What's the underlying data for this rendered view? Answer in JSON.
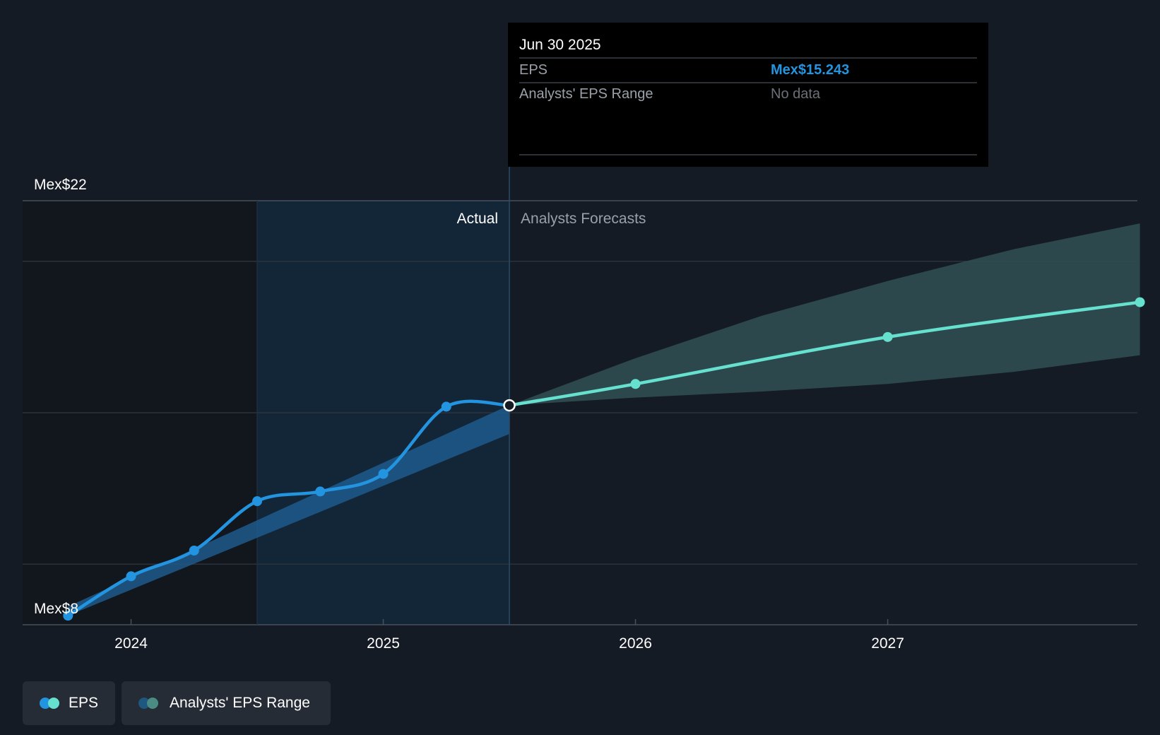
{
  "tooltip": {
    "date": "Jun 30 2025",
    "rows": [
      {
        "label": "EPS",
        "value": "Mex$15.243"
      },
      {
        "label": "Analysts' EPS Range",
        "value": "No data"
      }
    ]
  },
  "regions": {
    "actual_label": "Actual",
    "forecast_label": "Analysts Forecasts"
  },
  "legend": {
    "eps_label": "EPS",
    "range_label": "Analysts' EPS Range"
  },
  "colors": {
    "background": "#151b24",
    "actual": "#2394df",
    "forecast": "#66e0cf",
    "forecast_band": "#2e4b50",
    "past_band": "#1f5a8c",
    "tooltip_value": "#2394df",
    "legend_eps_dot_a": "#2394df",
    "legend_eps_dot_b": "#66e0cf",
    "legend_range_dot_a": "#1e5780",
    "legend_range_dot_b": "#4a8c84"
  },
  "chart_data": {
    "type": "line",
    "title": "",
    "xlabel": "",
    "ylabel": "",
    "x_ticks": [
      "2024",
      "2025",
      "2026",
      "2027"
    ],
    "x_tick_values": [
      2024.0,
      2025.0,
      2026.0,
      2027.0
    ],
    "xlim": [
      2023.57,
      2027.99
    ],
    "ylim": [
      8,
      22
    ],
    "y_tick_labels": [
      "Mex$22",
      "Mex$8"
    ],
    "y_tick_values": [
      22,
      8
    ],
    "y_gridlines": [
      22,
      20,
      15,
      10,
      8
    ],
    "actual_divider_x": 2025.5,
    "past_shade_start_x": 2024.5,
    "series": [
      {
        "name": "EPS",
        "kind": "actual",
        "x": [
          2023.75,
          2024.0,
          2024.25,
          2024.5,
          2024.75,
          2025.0,
          2025.25,
          2025.5
        ],
        "y": [
          8.3,
          9.6,
          10.45,
          12.08,
          12.4,
          12.98,
          15.2,
          15.243
        ]
      },
      {
        "name": "EPS",
        "kind": "forecast",
        "x": [
          2025.5,
          2026.0,
          2027.0,
          2028.0
        ],
        "y": [
          15.243,
          15.95,
          17.5,
          18.65
        ]
      }
    ],
    "analysts_eps_range_past": {
      "x": [
        2023.75,
        2025.5
      ],
      "low": [
        8.3,
        14.3
      ],
      "high": [
        8.6,
        15.25
      ]
    },
    "analysts_eps_range_forecast": {
      "x": [
        2025.5,
        2026.0,
        2026.5,
        2027.0,
        2027.5,
        2028.0
      ],
      "low": [
        15.243,
        15.5,
        15.7,
        15.95,
        16.35,
        16.9
      ],
      "high": [
        15.243,
        16.8,
        18.2,
        19.35,
        20.4,
        21.25
      ]
    },
    "tooltip_marker": {
      "x": 2025.5,
      "y": 15.243
    }
  }
}
